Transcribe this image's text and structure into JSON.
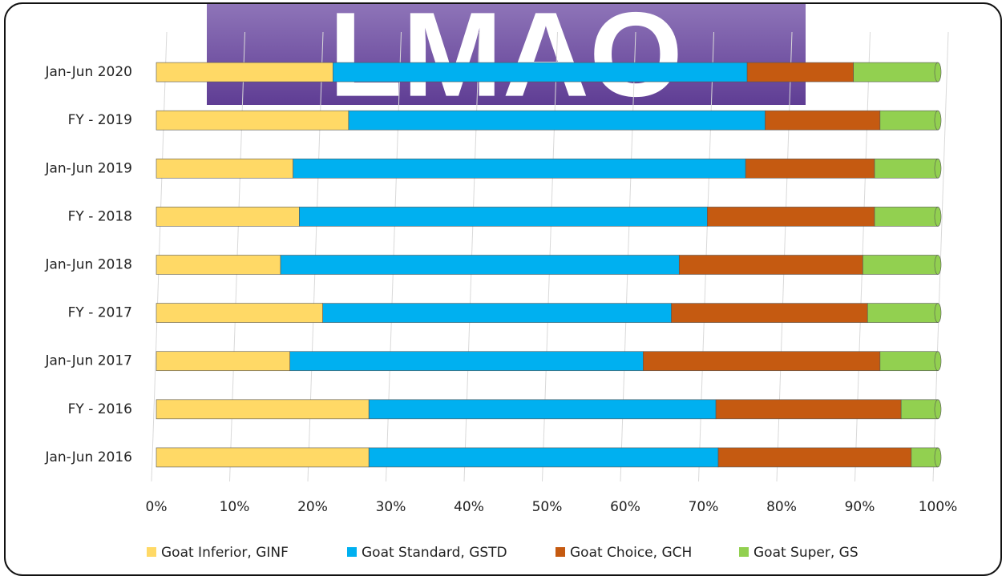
{
  "logo": "LMAO",
  "chart_data": {
    "type": "bar",
    "orientation": "horizontal",
    "stacked": true,
    "categories": [
      "Jan-Jun 2020",
      "FY - 2019",
      "Jan-Jun 2019",
      "FY - 2018",
      "Jan-Jun 2018",
      "FY - 2017",
      "Jan-Jun 2017",
      "FY - 2016",
      "Jan-Jun 2016"
    ],
    "series": [
      {
        "name": "Goat Inferior, GINF",
        "color": "#ffd966",
        "values": [
          22.6,
          24.6,
          17.5,
          18.3,
          15.9,
          21.3,
          17.1,
          27.2,
          27.2
        ]
      },
      {
        "name": "Goat Standard, GSTD",
        "color": "#00b0f0",
        "values": [
          53.0,
          53.3,
          57.9,
          52.2,
          51.0,
          44.6,
          45.2,
          44.4,
          44.7
        ]
      },
      {
        "name": "Goat Choice, GCH",
        "color": "#c55a11",
        "values": [
          13.6,
          14.7,
          16.5,
          21.4,
          23.5,
          25.1,
          30.3,
          23.7,
          24.7
        ]
      },
      {
        "name": "Goat Super, GS",
        "color": "#92d050",
        "values": [
          10.8,
          7.4,
          8.1,
          8.1,
          9.6,
          9.0,
          7.4,
          4.7,
          3.4
        ]
      }
    ],
    "xlim": [
      0,
      100
    ],
    "xticks": [
      {
        "value": 0,
        "label": "0%"
      },
      {
        "value": 10,
        "label": "10%"
      },
      {
        "value": 20,
        "label": "20%"
      },
      {
        "value": 30,
        "label": "30%"
      },
      {
        "value": 40,
        "label": "40%"
      },
      {
        "value": 50,
        "label": "50%"
      },
      {
        "value": 60,
        "label": "60%"
      },
      {
        "value": 70,
        "label": "70%"
      },
      {
        "value": 80,
        "label": "80%"
      },
      {
        "value": 90,
        "label": "90%"
      },
      {
        "value": 100,
        "label": "100%"
      }
    ],
    "grid": true,
    "legend": "bottom"
  }
}
